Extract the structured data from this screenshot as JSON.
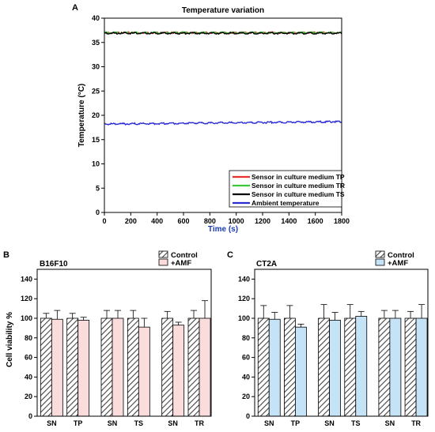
{
  "chart_data": [
    {
      "panel": "A",
      "type": "line",
      "title": "Temperature variation",
      "xlabel": "Time (s)",
      "ylabel": "Temperature (°C)",
      "xlim": [
        0,
        1800
      ],
      "ylim": [
        0,
        40
      ],
      "xticks": [
        "0",
        "200",
        "400",
        "600",
        "800",
        "1000",
        "1200",
        "1400",
        "1600",
        "1800"
      ],
      "yticks": [
        "0",
        "5",
        "10",
        "15",
        "20",
        "25",
        "30",
        "35",
        "40"
      ],
      "legend_position": "bottom-right",
      "series": [
        {
          "name": "Sensor in culture medium TP",
          "color": "#e8312a",
          "x": [
            0,
            1800
          ],
          "y": [
            37.0,
            37.0
          ]
        },
        {
          "name": "Sensor in culture medium TR",
          "color": "#3cc83c",
          "x": [
            0,
            1800
          ],
          "y": [
            37.0,
            37.0
          ]
        },
        {
          "name": "Sensor in culture medium TS",
          "color": "#000000",
          "x": [
            0,
            1800
          ],
          "y": [
            36.9,
            36.9
          ]
        },
        {
          "name": "Ambient temperature",
          "color": "#2b2bd6",
          "x": [
            0,
            1800
          ],
          "y": [
            18.2,
            18.7
          ]
        }
      ]
    },
    {
      "panel": "B",
      "type": "bar",
      "title": "B16F10",
      "ylabel": "Cell viability %",
      "ylim": [
        0,
        150
      ],
      "yticks": [
        "0",
        "20",
        "40",
        "60",
        "80",
        "100",
        "120",
        "140"
      ],
      "categories": [
        "SN",
        "TP",
        "SN",
        "TS",
        "SN",
        "TR"
      ],
      "legend_position": "top-right",
      "series": [
        {
          "name": "Control",
          "values": [
            100,
            100,
            100,
            100,
            100,
            100
          ],
          "errors": [
            5,
            5,
            8,
            8,
            7,
            8
          ]
        },
        {
          "name": "+AMF",
          "values": [
            99,
            98,
            100,
            91,
            93,
            100
          ],
          "errors": [
            9,
            3,
            8,
            9,
            3,
            18
          ]
        }
      ],
      "colors": {
        "control_hatch": "#555555",
        "amf_fill": "#fbdcdc"
      }
    },
    {
      "panel": "C",
      "type": "bar",
      "title": "CT2A",
      "ylabel": "",
      "ylim": [
        0,
        150
      ],
      "yticks": [
        "0",
        "20",
        "40",
        "60",
        "80",
        "100",
        "120",
        "140"
      ],
      "categories": [
        "SN",
        "TP",
        "SN",
        "TS",
        "SN",
        "TR"
      ],
      "legend_position": "top-right",
      "series": [
        {
          "name": "Control",
          "values": [
            100,
            100,
            100,
            100,
            100,
            100
          ],
          "errors": [
            13,
            13,
            14,
            14,
            8,
            7
          ]
        },
        {
          "name": "+AMF",
          "values": [
            99,
            91,
            98,
            102,
            100,
            100
          ],
          "errors": [
            7,
            3,
            8,
            5,
            8,
            14
          ]
        }
      ],
      "colors": {
        "control_hatch": "#555555",
        "amf_fill": "#c5e3f6"
      }
    }
  ]
}
